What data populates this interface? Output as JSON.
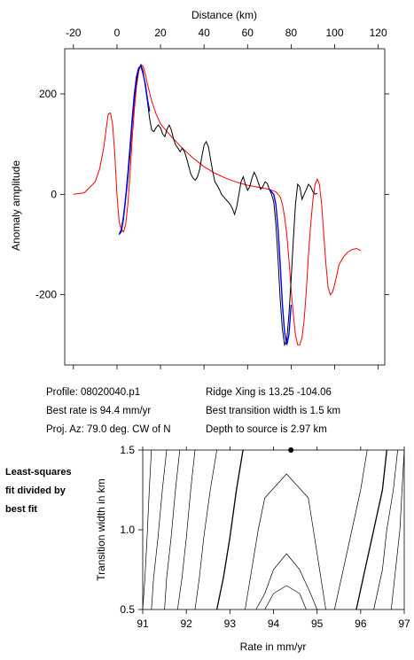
{
  "top_plot": {
    "xlabel": "Distance (km)",
    "ylabel": "Anomaly amplitude",
    "xticks": [
      -20,
      0,
      20,
      40,
      60,
      80,
      100,
      120
    ],
    "yticks": [
      200,
      0,
      -200
    ],
    "xlim": [
      -24,
      123
    ],
    "ylim": [
      -340,
      290
    ]
  },
  "info": {
    "profile": "Profile: 08020040.p1",
    "best_rate": "Best rate is 94.4 mm/yr",
    "proj_az": "Proj. Az: 79.0 deg. CW of N",
    "ridge_xing": "Ridge Xing is 13.25 -104.06",
    "best_width": "Best transition width is 1.5 km",
    "depth": "Depth to source is   2.97 km"
  },
  "side_label": [
    "Least-squares",
    "fit divided by",
    "best fit"
  ],
  "bottom_plot": {
    "xlabel": "Rate in mm/yr",
    "ylabel": "Transition width in km",
    "xticks": [
      91,
      92,
      93,
      94,
      95,
      96,
      97
    ],
    "yticks": [
      "0.5",
      "1.0",
      "1.5"
    ],
    "xlim": [
      91,
      97
    ],
    "ylim": [
      0.5,
      1.5
    ],
    "best_fit_point": {
      "rate": 94.4,
      "width": 1.5
    }
  },
  "chart_data": [
    {
      "type": "line",
      "title": "",
      "xlabel": "Distance (km)",
      "ylabel": "Anomaly amplitude",
      "xlim": [
        -24,
        123
      ],
      "ylim": [
        -340,
        290
      ],
      "series": [
        {
          "color": "#ff0000",
          "x": [
            -20,
            -15,
            -10,
            -8,
            -6,
            -5,
            -4,
            -3,
            -2,
            -1,
            0,
            1,
            2,
            3,
            4,
            5,
            6,
            7,
            8,
            9,
            10,
            11,
            12,
            13,
            14,
            16,
            18,
            20,
            25,
            30,
            35,
            40,
            45,
            50,
            55,
            60,
            65,
            70,
            73,
            75,
            76,
            77,
            78,
            79,
            80,
            81,
            82,
            83,
            84,
            85,
            86,
            87,
            88,
            89,
            90,
            91,
            92,
            93,
            94,
            95,
            96,
            97,
            98,
            99,
            100,
            101,
            102,
            104,
            106,
            108,
            110,
            112
          ],
          "y": [
            0,
            3,
            25,
            50,
            95,
            130,
            160,
            162,
            140,
            80,
            0,
            -55,
            -70,
            -75,
            -60,
            -20,
            40,
            110,
            170,
            215,
            245,
            258,
            255,
            240,
            220,
            185,
            160,
            140,
            115,
            92,
            72,
            55,
            42,
            32,
            24,
            18,
            14,
            10,
            5,
            -5,
            -20,
            -45,
            -80,
            -130,
            -190,
            -240,
            -280,
            -300,
            -300,
            -285,
            -250,
            -190,
            -120,
            -60,
            -10,
            20,
            30,
            20,
            -20,
            -80,
            -140,
            -185,
            -200,
            -195,
            -180,
            -160,
            -140,
            -125,
            -115,
            -110,
            -108,
            -112
          ]
        },
        {
          "color": "#000000",
          "x": [
            1,
            2,
            3,
            4,
            5,
            6,
            7,
            8,
            9,
            10,
            11,
            12,
            13,
            14,
            15,
            16,
            17,
            18,
            19,
            20,
            21,
            22,
            23,
            24,
            25,
            26,
            27,
            28,
            29,
            30,
            31,
            32,
            33,
            34,
            35,
            36,
            37,
            38,
            39,
            40,
            41,
            42,
            43,
            44,
            45,
            46,
            47,
            48,
            49,
            50,
            51,
            52,
            53,
            54,
            55,
            56,
            57,
            58,
            59,
            60,
            61,
            62,
            63,
            64,
            65,
            66,
            67,
            68,
            69,
            70,
            71,
            72,
            73,
            74,
            75,
            76,
            77,
            78,
            79,
            80,
            81,
            82,
            83,
            84,
            85,
            86,
            87,
            88,
            89,
            90,
            91,
            92
          ],
          "y": [
            -80,
            -75,
            -50,
            -10,
            30,
            80,
            140,
            190,
            225,
            250,
            258,
            245,
            215,
            185,
            150,
            128,
            125,
            133,
            138,
            132,
            120,
            115,
            130,
            138,
            128,
            110,
            98,
            92,
            85,
            92,
            85,
            72,
            55,
            40,
            32,
            28,
            35,
            50,
            75,
            98,
            105,
            95,
            70,
            45,
            25,
            18,
            10,
            0,
            -5,
            -10,
            -15,
            -20,
            -28,
            -40,
            -25,
            0,
            25,
            35,
            20,
            8,
            15,
            32,
            44,
            35,
            22,
            10,
            15,
            25,
            22,
            10,
            0,
            -15,
            -60,
            -130,
            -210,
            -270,
            -300,
            -290,
            -240,
            -170,
            -90,
            -20,
            20,
            15,
            -10,
            0,
            10,
            20,
            15,
            5,
            0,
            2
          ]
        },
        {
          "color": "#0000ff",
          "x": [
            1,
            2,
            3,
            4,
            5,
            6,
            7,
            8,
            9,
            10,
            11,
            12,
            13,
            14,
            15,
            70,
            71,
            72,
            73,
            74,
            75,
            76,
            77,
            78,
            79,
            80
          ],
          "y": [
            -80,
            -70,
            -45,
            -5,
            40,
            95,
            150,
            200,
            235,
            252,
            255,
            240,
            220,
            190,
            165,
            10,
            5,
            0,
            -20,
            -70,
            -140,
            -220,
            -275,
            -300,
            -280,
            -220
          ]
        }
      ]
    },
    {
      "type": "line",
      "title": "",
      "xlabel": "Rate in mm/yr",
      "ylabel": "Transition width in km",
      "xlim": [
        91,
        97
      ],
      "ylim": [
        0.5,
        1.5
      ],
      "series": [
        {
          "color": "#000000",
          "x": [
            91,
            91.05,
            91.1,
            91.15,
            91.2
          ],
          "y": [
            0.5,
            0.7,
            0.95,
            1.25,
            1.5
          ]
        },
        {
          "color": "#000000",
          "x": [
            91.2,
            91.25,
            91.35,
            91.45,
            91.55
          ],
          "y": [
            0.5,
            0.7,
            0.95,
            1.25,
            1.5
          ]
        },
        {
          "color": "#000000",
          "x": [
            91.5,
            91.55,
            91.65,
            91.75,
            91.85
          ],
          "y": [
            0.5,
            0.7,
            0.95,
            1.25,
            1.5
          ]
        },
        {
          "color": "#000000",
          "x": [
            91.8,
            91.9,
            92.0,
            92.1,
            92.2
          ],
          "y": [
            0.5,
            0.7,
            0.95,
            1.25,
            1.5
          ]
        },
        {
          "color": "#000000",
          "x": [
            92.2,
            92.3,
            92.4,
            92.55,
            92.7
          ],
          "y": [
            0.5,
            0.7,
            0.95,
            1.25,
            1.5
          ]
        },
        {
          "color": "#000000",
          "x": [
            92.7,
            92.85,
            93.0,
            93.15,
            93.3
          ],
          "y": [
            0.5,
            0.7,
            0.95,
            1.25,
            1.5
          ]
        },
        {
          "color": "#000000",
          "x": [
            93.35,
            93.5,
            93.65,
            93.8,
            94.3,
            94.8,
            95.0,
            95.2
          ],
          "y": [
            0.5,
            0.75,
            1.0,
            1.2,
            1.35,
            1.2,
            0.85,
            0.5
          ]
        },
        {
          "color": "#000000",
          "x": [
            93.6,
            93.8,
            94.0,
            94.3,
            94.6,
            94.85,
            95.0
          ],
          "y": [
            0.5,
            0.6,
            0.75,
            0.85,
            0.75,
            0.6,
            0.5
          ]
        },
        {
          "color": "#000000",
          "x": [
            93.8,
            94.0,
            94.3,
            94.6,
            94.75
          ],
          "y": [
            0.5,
            0.6,
            0.65,
            0.6,
            0.5
          ]
        },
        {
          "color": "#000000",
          "x": [
            95.4,
            95.6,
            95.8,
            96.0,
            96.15
          ],
          "y": [
            0.5,
            0.75,
            1.0,
            1.25,
            1.5
          ]
        },
        {
          "color": "#000000",
          "x": [
            95.9,
            96.1,
            96.3,
            96.5,
            96.6
          ],
          "y": [
            0.5,
            0.75,
            1.0,
            1.25,
            1.5
          ]
        },
        {
          "color": "#000000",
          "x": [
            96.3,
            96.5,
            96.6,
            96.75,
            96.85
          ],
          "y": [
            0.5,
            0.75,
            1.0,
            1.25,
            1.5
          ]
        },
        {
          "color": "#000000",
          "x": [
            96.7,
            96.8,
            96.9,
            96.95,
            97
          ],
          "y": [
            0.5,
            0.75,
            1.0,
            1.25,
            1.5
          ]
        }
      ]
    }
  ]
}
